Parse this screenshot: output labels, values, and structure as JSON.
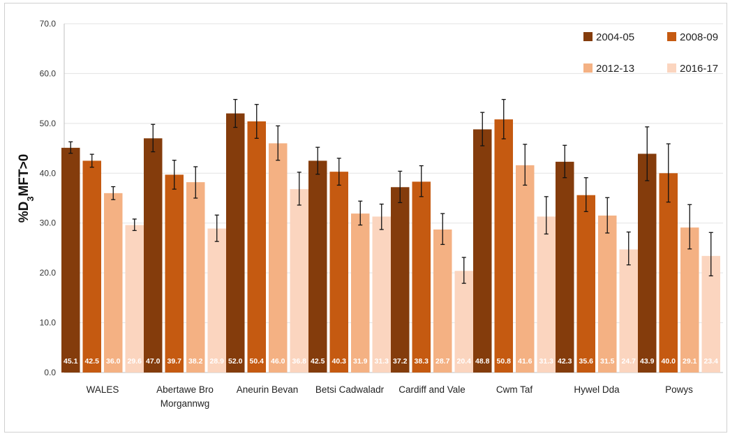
{
  "chart_data": {
    "type": "bar",
    "title": "",
    "xlabel": "",
    "ylabel": {
      "main": "%D",
      "sub": "3",
      "rest": "MFT>0"
    },
    "ylim": [
      0,
      70
    ],
    "yticks": [
      "0.0",
      "10.0",
      "20.0",
      "30.0",
      "40.0",
      "50.0",
      "60.0",
      "70.0"
    ],
    "grid": true,
    "legend_position": "top-right",
    "categories": [
      [
        "WALES"
      ],
      [
        "Abertawe Bro",
        "Morgannwg"
      ],
      [
        "Aneurin Bevan"
      ],
      [
        "Betsi Cadwaladr"
      ],
      [
        "Cardiff and Vale"
      ],
      [
        "Cwm Taf"
      ],
      [
        "Hywel Dda"
      ],
      [
        "Powys"
      ]
    ],
    "series": [
      {
        "name": "2004-05",
        "color": "#843c0c",
        "values": [
          45.1,
          47.0,
          52.0,
          42.5,
          37.2,
          48.8,
          42.3,
          43.9
        ],
        "error_low": [
          44.0,
          44.3,
          49.2,
          39.8,
          34.1,
          45.5,
          39.1,
          38.5
        ],
        "error_high": [
          46.3,
          49.8,
          54.8,
          45.2,
          40.4,
          52.2,
          45.6,
          49.3
        ],
        "labels": [
          "45.1",
          "47.0",
          "52.0",
          "42.5",
          "37.2",
          "48.8",
          "42.3",
          "43.9"
        ]
      },
      {
        "name": "2008-09",
        "color": "#c55a11",
        "values": [
          42.5,
          39.7,
          50.4,
          40.3,
          38.3,
          50.8,
          35.6,
          40.0
        ],
        "error_low": [
          41.2,
          36.8,
          47.0,
          37.6,
          35.3,
          46.9,
          32.3,
          34.2
        ],
        "error_high": [
          43.8,
          42.6,
          53.8,
          43.0,
          41.5,
          54.8,
          39.1,
          45.9
        ],
        "labels": [
          "42.5",
          "39.7",
          "50.4",
          "40.3",
          "38.3",
          "50.8",
          "35.6",
          "40.0"
        ]
      },
      {
        "name": "2012-13",
        "color": "#f4b183",
        "values": [
          36.0,
          38.2,
          46.0,
          31.9,
          28.7,
          41.6,
          31.5,
          29.1
        ],
        "error_low": [
          34.7,
          35.0,
          42.6,
          29.6,
          25.7,
          37.6,
          28.0,
          24.8
        ],
        "error_high": [
          37.3,
          41.3,
          49.5,
          34.4,
          31.9,
          45.8,
          35.1,
          33.7
        ],
        "labels": [
          "36.0",
          "38.2",
          "46.0",
          "31.9",
          "28.7",
          "41.6",
          "31.5",
          "29.1"
        ]
      },
      {
        "name": "2016-17",
        "color": "#fbd5bf",
        "values": [
          29.6,
          28.9,
          36.8,
          31.3,
          20.4,
          31.3,
          24.7,
          23.4
        ],
        "error_low": [
          28.5,
          26.3,
          33.6,
          28.7,
          17.9,
          27.8,
          21.6,
          19.4
        ],
        "error_high": [
          30.8,
          31.6,
          40.2,
          33.8,
          23.1,
          35.3,
          28.2,
          28.1
        ],
        "labels": [
          "29.6",
          "28.9",
          "36.8",
          "31.3",
          "20.4",
          "31.3",
          "24.7",
          "23.4"
        ]
      }
    ]
  }
}
